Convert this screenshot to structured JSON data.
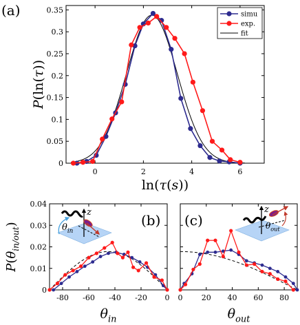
{
  "colors": {
    "simu": "#2d2b8f",
    "exp": "#ff1a1a",
    "fit": "#000000",
    "fit_bc": "#000000",
    "inset_fill": "#a9cdf4"
  },
  "chart_data": [
    {
      "panel": "(a)",
      "type": "line",
      "xlabel": "ln(τ(s))",
      "ylabel": "P(ln(τ))",
      "xlim": [
        -1.2,
        7.0
      ],
      "ylim": [
        0,
        0.36
      ],
      "xticks": [
        "0",
        "2",
        "4",
        "6"
      ],
      "yticks": [
        "0",
        "0.05",
        "0.1",
        "0.15",
        "0.2",
        "0.25",
        "0.3",
        "0.35"
      ],
      "legend": {
        "placement": "top-right",
        "entries": [
          "simu",
          "exp.",
          "fit"
        ]
      },
      "series": [
        {
          "name": "simu",
          "style": "line-marker",
          "x": [
            -0.75,
            -0.35,
            0.05,
            0.45,
            0.85,
            1.25,
            1.65,
            2.0,
            2.4,
            2.75,
            3.15,
            3.55,
            3.95,
            4.35,
            4.75,
            5.15,
            5.55,
            6.0
          ],
          "y": [
            0.0,
            0.004,
            0.018,
            0.061,
            0.115,
            0.18,
            0.268,
            0.318,
            0.342,
            0.326,
            0.26,
            0.148,
            0.079,
            0.04,
            0.013,
            0.005,
            0.003,
            0.0
          ]
        },
        {
          "name": "exp.",
          "style": "line-marker",
          "x": [
            -0.9,
            -0.5,
            -0.1,
            0.3,
            0.7,
            1.1,
            1.5,
            1.85,
            2.2,
            2.55,
            2.95,
            3.3,
            3.7,
            4.05,
            4.45,
            4.85,
            5.25,
            5.6,
            6.0
          ],
          "y": [
            0.0,
            0.002,
            0.004,
            0.055,
            0.101,
            0.14,
            0.27,
            0.31,
            0.32,
            0.335,
            0.31,
            0.285,
            0.25,
            0.185,
            0.12,
            0.05,
            0.03,
            0.008,
            0.002
          ]
        },
        {
          "name": "fit",
          "style": "line",
          "gauss": {
            "amplitude": 0.338,
            "mean": 2.35,
            "sigma": 1.05,
            "xmin": -1.0,
            "xmax": 6.2
          }
        }
      ]
    },
    {
      "panel": "(b)",
      "type": "line",
      "xlabel": "θin",
      "ylabel": "P(θin/out)",
      "xlim": [
        -90,
        0
      ],
      "ylim": [
        0,
        0.04
      ],
      "xticks": [
        "-80",
        "-60",
        "-40",
        "-20",
        "0"
      ],
      "yticks": [
        "0",
        "0.01",
        "0.02",
        "0.03",
        "0.04"
      ],
      "inset_label": "θin",
      "inset_axis": "z",
      "series": [
        {
          "name": "simu",
          "style": "line-marker",
          "x": [
            -87,
            -81,
            -75,
            -69,
            -63,
            -57,
            -51,
            -45,
            -39,
            -33,
            -27,
            -21,
            -15,
            -9,
            -3,
            0
          ],
          "y": [
            0.0,
            0.003,
            0.006,
            0.0085,
            0.011,
            0.013,
            0.0155,
            0.017,
            0.0175,
            0.0165,
            0.015,
            0.013,
            0.0105,
            0.007,
            0.002,
            0.0
          ]
        },
        {
          "name": "exp.",
          "style": "line-marker",
          "x": [
            -90,
            -84,
            -78,
            -72,
            -66,
            -60,
            -54,
            -48,
            -42,
            -38,
            -34,
            -30,
            -26,
            -22,
            -16,
            -10,
            -4,
            0
          ],
          "y": [
            0.0,
            0.003,
            0.007,
            0.009,
            0.011,
            0.015,
            0.017,
            0.0195,
            0.022,
            0.017,
            0.015,
            0.0175,
            0.0105,
            0.009,
            0.0125,
            0.006,
            0.0045,
            0.0
          ]
        },
        {
          "name": "fit",
          "style": "dashed",
          "sine": {
            "amplitude": 0.0178,
            "period": 180,
            "xmin": -90,
            "xmax": 0,
            "offset": 0
          }
        }
      ]
    },
    {
      "panel": "(c)",
      "type": "line",
      "xlabel": "θout",
      "xlim": [
        0,
        90
      ],
      "ylim": [
        0,
        0.04
      ],
      "xticks": [
        "0",
        "20",
        "40",
        "60",
        "80"
      ],
      "yticks": [],
      "inset_label": "θout",
      "inset_axis": "z",
      "series": [
        {
          "name": "simu",
          "style": "line-marker",
          "x": [
            0,
            3,
            9,
            15,
            21,
            27,
            33,
            39,
            45,
            51,
            57,
            63,
            69,
            75,
            81,
            87,
            90
          ],
          "y": [
            0.0,
            0.003,
            0.0075,
            0.0165,
            0.0175,
            0.0175,
            0.018,
            0.0185,
            0.0165,
            0.0135,
            0.0125,
            0.0115,
            0.01,
            0.0085,
            0.006,
            0.003,
            0.0
          ]
        },
        {
          "name": "exp.",
          "style": "line-marker",
          "x": [
            0,
            4,
            10,
            15,
            21,
            27,
            33,
            39,
            45,
            51,
            57,
            63,
            69,
            75,
            81,
            87
          ],
          "y": [
            0.0,
            0.0025,
            0.0095,
            0.012,
            0.023,
            0.023,
            0.0155,
            0.0275,
            0.0175,
            0.0115,
            0.012,
            0.0085,
            0.0075,
            0.005,
            0.004,
            0.0
          ]
        },
        {
          "name": "fit",
          "style": "dashed",
          "cosine": {
            "amplitude": 0.0178,
            "period": 360,
            "xmin": 0,
            "xmax": 90
          }
        }
      ]
    }
  ]
}
